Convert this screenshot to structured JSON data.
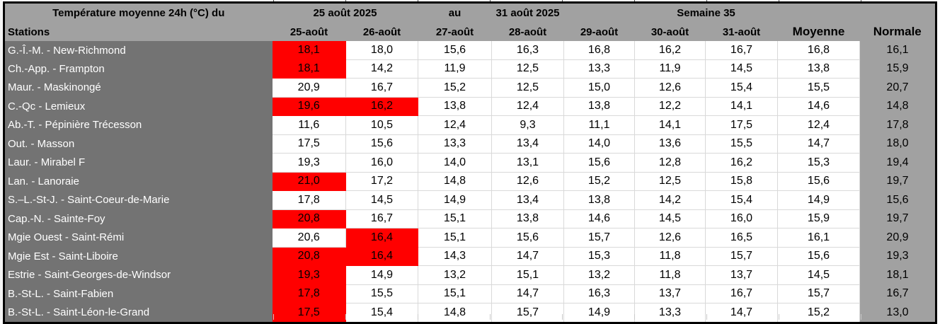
{
  "title": {
    "label": "Température moyenne 24h (°C) du",
    "date_start": "25 août 2025",
    "connector": "au",
    "date_end": "31 août 2025",
    "week": "Semaine 35"
  },
  "columns": {
    "stations": "Stations",
    "days": [
      "25-août",
      "26-août",
      "27-août",
      "28-août",
      "29-août",
      "30-août",
      "31-août"
    ],
    "moyenne": "Moyenne",
    "normale": "Normale"
  },
  "colors": {
    "header_gray": "#a1a1a1",
    "stations_gray": "#737373",
    "highlight_red": "#ff0000",
    "gridline": "#d9d9d9",
    "border": "#000000"
  },
  "rows": [
    {
      "station": "G.-Î.-M. - New-Richmond",
      "values": [
        "18,1",
        "18,0",
        "15,6",
        "16,3",
        "16,8",
        "16,2",
        "16,7"
      ],
      "red": [
        0
      ],
      "moyenne": "16,8",
      "normale": "16,1"
    },
    {
      "station": "Ch.-App. - Frampton",
      "values": [
        "18,1",
        "14,2",
        "11,9",
        "12,5",
        "13,3",
        "11,9",
        "14,5"
      ],
      "red": [
        0
      ],
      "moyenne": "13,8",
      "normale": "15,9"
    },
    {
      "station": "Maur. - Maskinongé",
      "values": [
        "20,9",
        "16,7",
        "15,2",
        "12,5",
        "15,0",
        "12,6",
        "15,4"
      ],
      "red": [],
      "moyenne": "15,5",
      "normale": "20,7"
    },
    {
      "station": "C.-Qc - Lemieux",
      "values": [
        "19,6",
        "16,2",
        "13,8",
        "12,4",
        "13,8",
        "12,2",
        "14,1"
      ],
      "red": [
        0,
        1
      ],
      "moyenne": "14,6",
      "normale": "14,8"
    },
    {
      "station": "Ab.-T. - Pépinière Trécesson",
      "values": [
        "11,6",
        "10,5",
        "12,4",
        "9,3",
        "11,1",
        "14,1",
        "17,5"
      ],
      "red": [],
      "moyenne": "12,4",
      "normale": "17,8"
    },
    {
      "station": "Out. - Masson",
      "values": [
        "17,5",
        "15,6",
        "13,3",
        "13,4",
        "14,0",
        "13,6",
        "15,5"
      ],
      "red": [],
      "moyenne": "14,7",
      "normale": "18,0"
    },
    {
      "station": "Laur. - Mirabel F",
      "values": [
        "19,3",
        "16,0",
        "14,0",
        "13,1",
        "15,6",
        "12,8",
        "16,2"
      ],
      "red": [],
      "moyenne": "15,3",
      "normale": "19,4"
    },
    {
      "station": "Lan. - Lanoraie",
      "values": [
        "21,0",
        "17,2",
        "14,8",
        "12,6",
        "15,2",
        "12,5",
        "15,8"
      ],
      "red": [
        0
      ],
      "moyenne": "15,6",
      "normale": "19,7"
    },
    {
      "station": "S.–L.-St-J. - Saint-Coeur-de-Marie",
      "values": [
        "17,8",
        "14,5",
        "14,9",
        "13,4",
        "13,8",
        "14,2",
        "15,4"
      ],
      "red": [],
      "moyenne": "14,9",
      "normale": "15,6"
    },
    {
      "station": "Cap.-N. - Sainte-Foy",
      "values": [
        "20,8",
        "16,7",
        "15,1",
        "13,8",
        "14,6",
        "14,5",
        "16,0"
      ],
      "red": [
        0
      ],
      "moyenne": "15,9",
      "normale": "19,7"
    },
    {
      "station": "Mgie Ouest - Saint-Rémi",
      "values": [
        "20,6",
        "16,4",
        "15,1",
        "15,6",
        "15,7",
        "12,6",
        "16,5"
      ],
      "red": [
        1
      ],
      "moyenne": "16,1",
      "normale": "20,9"
    },
    {
      "station": "Mgie Est - Saint-Liboire",
      "values": [
        "20,8",
        "16,4",
        "14,3",
        "14,7",
        "15,3",
        "11,8",
        "15,7"
      ],
      "red": [
        0,
        1
      ],
      "moyenne": "15,6",
      "normale": "19,3"
    },
    {
      "station": "Estrie - Saint-Georges-de-Windsor",
      "values": [
        "19,3",
        "14,9",
        "13,2",
        "15,1",
        "13,2",
        "11,8",
        "13,7"
      ],
      "red": [
        0
      ],
      "moyenne": "14,5",
      "normale": "18,1"
    },
    {
      "station": "B.-St-L. - Saint-Fabien",
      "values": [
        "17,8",
        "15,5",
        "15,1",
        "14,7",
        "16,3",
        "13,7",
        "16,7"
      ],
      "red": [
        0
      ],
      "moyenne": "15,7",
      "normale": "16,7"
    },
    {
      "station": "B.-St-L. - Saint-Léon-le-Grand",
      "values": [
        "17,5",
        "15,4",
        "14,8",
        "15,7",
        "14,9",
        "13,3",
        "14,7"
      ],
      "red": [
        0
      ],
      "moyenne": "15,2",
      "normale": "13,0"
    }
  ]
}
